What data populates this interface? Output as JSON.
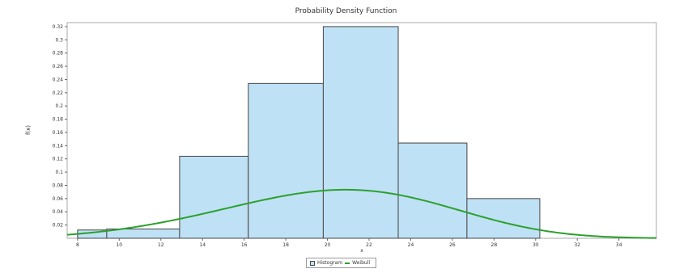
{
  "chart_data": {
    "type": "bar",
    "title": "Probability Density Function",
    "xlabel": "x",
    "ylabel": "f(x)",
    "xlim": [
      7.5,
      35.8
    ],
    "ylim": [
      0,
      0.326
    ],
    "xticks": [
      8,
      10,
      12,
      14,
      16,
      18,
      20,
      22,
      24,
      26,
      28,
      30,
      32,
      34
    ],
    "yticks": [
      0.02,
      0.04,
      0.06,
      0.08,
      0.1,
      0.12,
      0.14,
      0.16,
      0.18,
      0.2,
      0.22,
      0.24,
      0.26,
      0.28,
      0.3,
      0.32
    ],
    "bins": [
      {
        "from": 8,
        "to": 9.4,
        "value": 0.0125
      },
      {
        "from": 9.4,
        "to": 12.9,
        "value": 0.014
      },
      {
        "from": 12.9,
        "to": 16.2,
        "value": 0.124
      },
      {
        "from": 16.2,
        "to": 19.8,
        "value": 0.234
      },
      {
        "from": 19.8,
        "to": 23.4,
        "value": 0.32
      },
      {
        "from": 23.4,
        "to": 26.7,
        "value": 0.144
      },
      {
        "from": 26.7,
        "to": 30.2,
        "value": 0.06
      }
    ],
    "curve": {
      "name": "Weibull",
      "shape": 4.3,
      "scale": 22.2,
      "shift": 0
    },
    "legend": {
      "position": "bottom-center",
      "entries": [
        "Histogram",
        "Weibull"
      ]
    },
    "colors": {
      "bar_fill": "#bfe1f5",
      "bar_edge": "#444444",
      "curve": "#2ca02c"
    },
    "grid": false
  }
}
